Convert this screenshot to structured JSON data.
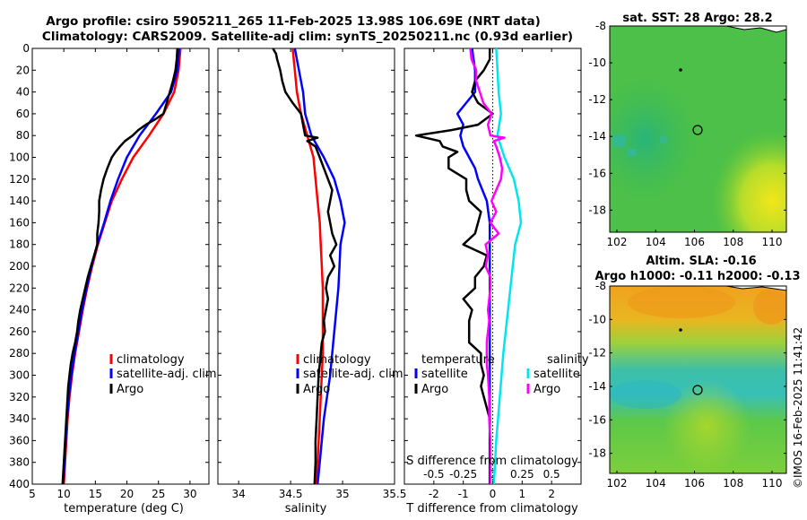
{
  "titles": {
    "line1": "Argo profile: csiro 5905211_265 11-Feb-2025 13.98S 106.69E (NRT data)",
    "line2": "Climatology: CARS2009. Satellite-adj clim: synTS_20250211.nc (0.93d earlier)"
  },
  "colors": {
    "climatology": "#ff0000",
    "satellite": "#0000ff",
    "argo": "#000000",
    "satellite_salinity": "#00e5ee",
    "argo_salinity": "#ff00ff"
  },
  "chart_data": [
    {
      "type": "line",
      "id": "temperature",
      "xlabel": "temperature (deg C)",
      "xlim": [
        5,
        33
      ],
      "xticks": [
        "5",
        "10",
        "15",
        "20",
        "25",
        "30"
      ],
      "xtick_values": [
        5,
        10,
        15,
        20,
        25,
        30
      ],
      "ylim": [
        0,
        400
      ],
      "yticks": [
        "0",
        "20",
        "40",
        "60",
        "80",
        "100",
        "120",
        "140",
        "160",
        "180",
        "200",
        "220",
        "240",
        "260",
        "280",
        "300",
        "320",
        "340",
        "360",
        "380",
        "400"
      ],
      "ytick_values": [
        0,
        20,
        40,
        60,
        80,
        100,
        120,
        140,
        160,
        180,
        200,
        220,
        240,
        260,
        280,
        300,
        320,
        340,
        360,
        380,
        400
      ],
      "legend": {
        "items": [
          "climatology",
          "satellite-adj. clim",
          "Argo"
        ],
        "placement": "lower-right"
      },
      "series": [
        {
          "name": "climatology",
          "depth": [
            0,
            20,
            40,
            60,
            80,
            100,
            120,
            140,
            160,
            180,
            200,
            220,
            240,
            260,
            280,
            300,
            320,
            340,
            360,
            380,
            400
          ],
          "values": [
            28.5,
            28.2,
            27.5,
            25.8,
            23.5,
            21.0,
            19.2,
            17.6,
            16.5,
            15.4,
            14.5,
            13.7,
            13.0,
            12.4,
            11.8,
            11.3,
            10.9,
            10.6,
            10.4,
            10.2,
            10.0
          ]
        },
        {
          "name": "satellite-adj. clim",
          "depth": [
            0,
            20,
            40,
            60,
            80,
            100,
            120,
            140,
            160,
            180,
            200,
            220,
            240,
            260,
            280,
            300,
            320,
            340,
            360,
            380,
            400
          ],
          "values": [
            28.3,
            28.0,
            27.0,
            24.6,
            22.0,
            20.0,
            18.6,
            17.4,
            16.4,
            15.3,
            14.4,
            13.6,
            12.9,
            12.3,
            11.7,
            11.2,
            10.8,
            10.5,
            10.3,
            10.1,
            9.9
          ]
        },
        {
          "name": "Argo",
          "depth": [
            0,
            10,
            20,
            30,
            40,
            50,
            60,
            65,
            70,
            75,
            80,
            85,
            90,
            95,
            100,
            110,
            120,
            130,
            140,
            150,
            160,
            170,
            180,
            190,
            200,
            210,
            220,
            230,
            240,
            250,
            260,
            270,
            280,
            290,
            300,
            310,
            320,
            330,
            340,
            350,
            360,
            370,
            380,
            390,
            400
          ],
          "values": [
            28.0,
            27.9,
            27.7,
            27.3,
            26.8,
            26.3,
            25.8,
            24.5,
            23.0,
            21.8,
            20.9,
            19.7,
            18.9,
            18.2,
            17.6,
            16.9,
            16.3,
            15.9,
            15.6,
            15.6,
            15.5,
            15.3,
            15.3,
            14.8,
            14.3,
            13.8,
            13.4,
            13.0,
            12.6,
            12.3,
            12.1,
            11.8,
            11.4,
            11.1,
            10.9,
            10.7,
            10.6,
            10.5,
            10.4,
            10.3,
            10.2,
            10.1,
            10.0,
            9.9,
            9.8
          ]
        }
      ]
    },
    {
      "type": "line",
      "id": "salinity",
      "xlabel": "salinity",
      "xlim": [
        33.8,
        35.5
      ],
      "xticks": [
        "34",
        "34.5",
        "35",
        "35.5"
      ],
      "xtick_values": [
        34,
        34.5,
        35,
        35.5
      ],
      "ylim": [
        0,
        400
      ],
      "legend": {
        "items": [
          "climatology",
          "satellite-adj. clim",
          "Argo"
        ],
        "placement": "lower-right"
      },
      "series": [
        {
          "name": "climatology",
          "depth": [
            0,
            20,
            40,
            60,
            80,
            100,
            120,
            140,
            160,
            180,
            200,
            220,
            240,
            260,
            280,
            300,
            320,
            340,
            360,
            380,
            400
          ],
          "values": [
            34.52,
            34.54,
            34.56,
            34.6,
            34.66,
            34.72,
            34.74,
            34.76,
            34.78,
            34.79,
            34.8,
            34.81,
            34.81,
            34.81,
            34.81,
            34.8,
            34.79,
            34.78,
            34.77,
            34.76,
            34.75
          ]
        },
        {
          "name": "satellite-adj. clim",
          "depth": [
            0,
            20,
            40,
            60,
            80,
            100,
            120,
            140,
            160,
            180,
            200,
            220,
            240,
            260,
            280,
            300,
            320,
            340,
            360,
            380,
            400
          ],
          "values": [
            34.54,
            34.58,
            34.62,
            34.64,
            34.7,
            34.82,
            34.92,
            34.98,
            35.02,
            34.98,
            34.97,
            34.96,
            34.94,
            34.92,
            34.9,
            34.88,
            34.85,
            34.82,
            34.8,
            34.78,
            34.76
          ]
        },
        {
          "name": "Argo",
          "depth": [
            0,
            5,
            10,
            20,
            30,
            40,
            50,
            60,
            70,
            80,
            82,
            85,
            90,
            100,
            110,
            120,
            130,
            140,
            150,
            160,
            170,
            180,
            190,
            200,
            210,
            220,
            230,
            240,
            250,
            260,
            270,
            280,
            290,
            300,
            320,
            340,
            360,
            380,
            400
          ],
          "values": [
            34.33,
            34.36,
            34.37,
            34.4,
            34.42,
            34.45,
            34.52,
            34.6,
            34.62,
            34.64,
            34.76,
            34.66,
            34.74,
            34.78,
            34.82,
            34.86,
            34.9,
            34.88,
            34.86,
            34.88,
            34.9,
            34.94,
            34.88,
            34.92,
            34.86,
            34.84,
            34.86,
            34.84,
            34.82,
            34.83,
            34.8,
            34.79,
            34.78,
            34.77,
            34.76,
            34.75,
            34.74,
            34.74,
            34.73
          ]
        }
      ]
    },
    {
      "type": "line",
      "id": "differences",
      "xlabel": "T difference from climatology",
      "xlim": [
        -3,
        3
      ],
      "xticks": [
        "-2",
        "-1",
        "0",
        "1",
        "2"
      ],
      "xtick_values": [
        -2,
        -1,
        0,
        1,
        2
      ],
      "top_xlabel": "S difference from climatology",
      "top_xticks": [
        "-0.5",
        "-0.25",
        "0",
        "0.25",
        "0.5"
      ],
      "top_xtick_values": [
        -0.5,
        -0.25,
        0,
        0.25,
        0.5
      ],
      "ylim": [
        0,
        400
      ],
      "legend": {
        "groups": [
          "temperature",
          "salinity"
        ],
        "items": [
          "satellite",
          "Argo",
          "satellite",
          "Argo"
        ],
        "placement": "lower-center"
      },
      "series": [
        {
          "name": "T satellite",
          "depth": [
            0,
            20,
            40,
            60,
            70,
            80,
            90,
            100,
            110,
            120,
            140,
            160,
            180,
            200,
            240,
            280,
            320,
            360,
            400
          ],
          "values": [
            -0.7,
            -0.6,
            -0.6,
            -1.2,
            -1.0,
            -1.1,
            -1.0,
            -0.8,
            -0.6,
            -0.5,
            -0.2,
            -0.1,
            -0.1,
            -0.1,
            -0.1,
            -0.1,
            -0.1,
            -0.1,
            -0.1
          ]
        },
        {
          "name": "T Argo",
          "depth": [
            0,
            10,
            20,
            30,
            40,
            50,
            60,
            70,
            75,
            80,
            85,
            90,
            95,
            100,
            110,
            120,
            130,
            140,
            150,
            160,
            170,
            180,
            190,
            200,
            210,
            220,
            230,
            240,
            250,
            260,
            270,
            280,
            290,
            300,
            310,
            320,
            340,
            360,
            380,
            400
          ],
          "values": [
            -0.1,
            -0.1,
            -0.3,
            -0.6,
            -0.7,
            -0.5,
            0.0,
            -0.5,
            -1.4,
            -2.6,
            -1.8,
            -1.7,
            -1.2,
            -1.5,
            -1.5,
            -0.9,
            -0.9,
            -0.8,
            -0.4,
            -0.5,
            -0.6,
            -1.0,
            -0.2,
            -0.3,
            -0.6,
            -0.6,
            -1.0,
            -0.7,
            -0.8,
            -0.8,
            -0.8,
            -0.4,
            -0.4,
            -0.3,
            -0.4,
            -0.3,
            -0.1,
            -0.1,
            -0.1,
            -0.1
          ]
        },
        {
          "name": "S satellite",
          "depth": [
            0,
            20,
            40,
            60,
            80,
            100,
            120,
            140,
            160,
            180,
            200,
            240,
            280,
            320,
            360,
            400
          ],
          "values": [
            0.03,
            0.04,
            0.05,
            0.07,
            0.04,
            0.1,
            0.18,
            0.22,
            0.24,
            0.19,
            0.17,
            0.13,
            0.09,
            0.06,
            0.03,
            0.01
          ]
        },
        {
          "name": "S Argo",
          "depth": [
            0,
            10,
            20,
            30,
            40,
            50,
            60,
            70,
            80,
            82,
            85,
            90,
            100,
            110,
            120,
            130,
            140,
            150,
            160,
            170,
            180,
            190,
            200,
            210,
            220,
            230,
            240,
            250,
            260,
            270,
            280,
            290,
            300,
            320,
            340,
            360,
            380,
            400
          ],
          "values": [
            -0.19,
            -0.18,
            -0.14,
            -0.14,
            -0.11,
            -0.08,
            -0.01,
            -0.04,
            -0.02,
            0.1,
            0.01,
            0.03,
            0.06,
            0.08,
            0.07,
            0.03,
            -0.01,
            0.03,
            -0.02,
            0.05,
            -0.06,
            -0.04,
            -0.06,
            -0.02,
            -0.02,
            -0.03,
            -0.04,
            -0.03,
            -0.04,
            -0.05,
            -0.05,
            -0.05,
            -0.04,
            -0.03,
            -0.03,
            -0.02,
            -0.02,
            -0.02
          ]
        }
      ]
    }
  ],
  "maps": [
    {
      "id": "sst",
      "title": "sat. SST: 28 Argo: 28.2",
      "title2": "",
      "ylabels": [
        "-8",
        "-10",
        "-12",
        "-14",
        "-16",
        "-18"
      ],
      "xlabels": [
        "102",
        "104",
        "106",
        "108",
        "110"
      ]
    },
    {
      "id": "sla",
      "title": "Altim. SLA: -0.16",
      "title2": "Argo h1000: -0.11 h2000: -0.13",
      "ylabels": [
        "-8",
        "-10",
        "-12",
        "-14",
        "-16",
        "-18"
      ],
      "xlabels": [
        "102",
        "104",
        "106",
        "108",
        "110"
      ]
    }
  ],
  "watermark": "©IMOS 16-Feb-2025 11:41:42",
  "legend_labels": {
    "climatology": "climatology",
    "satellite_adj": "satellite-adj. clim",
    "argo": "Argo",
    "temperature": "temperature",
    "salinity": "salinity",
    "satellite": "satellite"
  }
}
